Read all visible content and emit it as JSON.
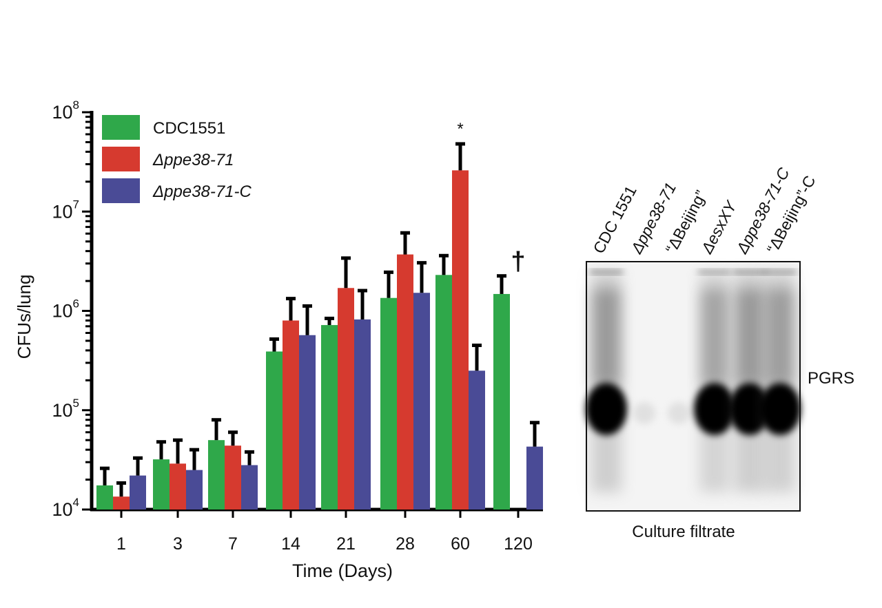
{
  "chart_data": {
    "type": "bar",
    "scale": "log",
    "xlabel": "Time (Days)",
    "ylabel": "CFUs/lung",
    "categories": [
      "1",
      "3",
      "7",
      "14",
      "21",
      "28",
      "60",
      "120"
    ],
    "ylim": [
      10000,
      100000000
    ],
    "yticks": [
      {
        "value": 10000,
        "base": "10",
        "exp": "4"
      },
      {
        "value": 100000,
        "base": "10",
        "exp": "5"
      },
      {
        "value": 1000000,
        "base": "10",
        "exp": "6"
      },
      {
        "value": 10000000,
        "base": "10",
        "exp": "7"
      },
      {
        "value": 100000000,
        "base": "10",
        "exp": "8"
      }
    ],
    "series": [
      {
        "name": "CDC1551",
        "italic": false,
        "color": "#2fa84a",
        "values": [
          17500,
          32000,
          50000,
          390000,
          720000,
          1350000,
          2300000,
          1480000
        ],
        "errors": [
          26000,
          48000,
          80000,
          520000,
          840000,
          2450000,
          3600000,
          2250000
        ]
      },
      {
        "name": "Δppe38-71",
        "italic": true,
        "color": "#d63a2f",
        "values": [
          13500,
          29000,
          44000,
          800000,
          1700000,
          3700000,
          26000000,
          null
        ],
        "errors": [
          18500,
          50000,
          60000,
          1330000,
          3400000,
          6100000,
          48000000,
          null
        ]
      },
      {
        "name": "Δppe38-71-C",
        "italic": true,
        "color": "#4a4b96",
        "values": [
          22000,
          25000,
          28000,
          570000,
          820000,
          1520000,
          250000,
          43000
        ],
        "errors": [
          33000,
          40000,
          38000,
          1120000,
          1600000,
          3050000,
          450000,
          75000
        ]
      }
    ],
    "annotations": [
      {
        "text": "*",
        "category": "60",
        "series": "Δppe38-71",
        "color": "#111111"
      },
      {
        "text": "†",
        "category": "120",
        "series": "Δppe38-71",
        "color": "#c0392b"
      }
    ]
  },
  "blot": {
    "lane_labels": [
      {
        "text": "CDC 1551",
        "italic": false
      },
      {
        "text": "Δppe38-71",
        "italic": true
      },
      {
        "text": "“ΔBeijing”",
        "italic": false
      },
      {
        "text": "ΔesxXY",
        "italic": true
      },
      {
        "text": "Δppe38-71-C",
        "italic": true
      },
      {
        "text": "“ΔBeijing”-C",
        "italic": false
      }
    ],
    "lane_intensity": [
      1.0,
      0.06,
      0.04,
      0.85,
      1.0,
      0.95
    ],
    "band_label": "PGRS",
    "caption": "Culture filtrate"
  }
}
